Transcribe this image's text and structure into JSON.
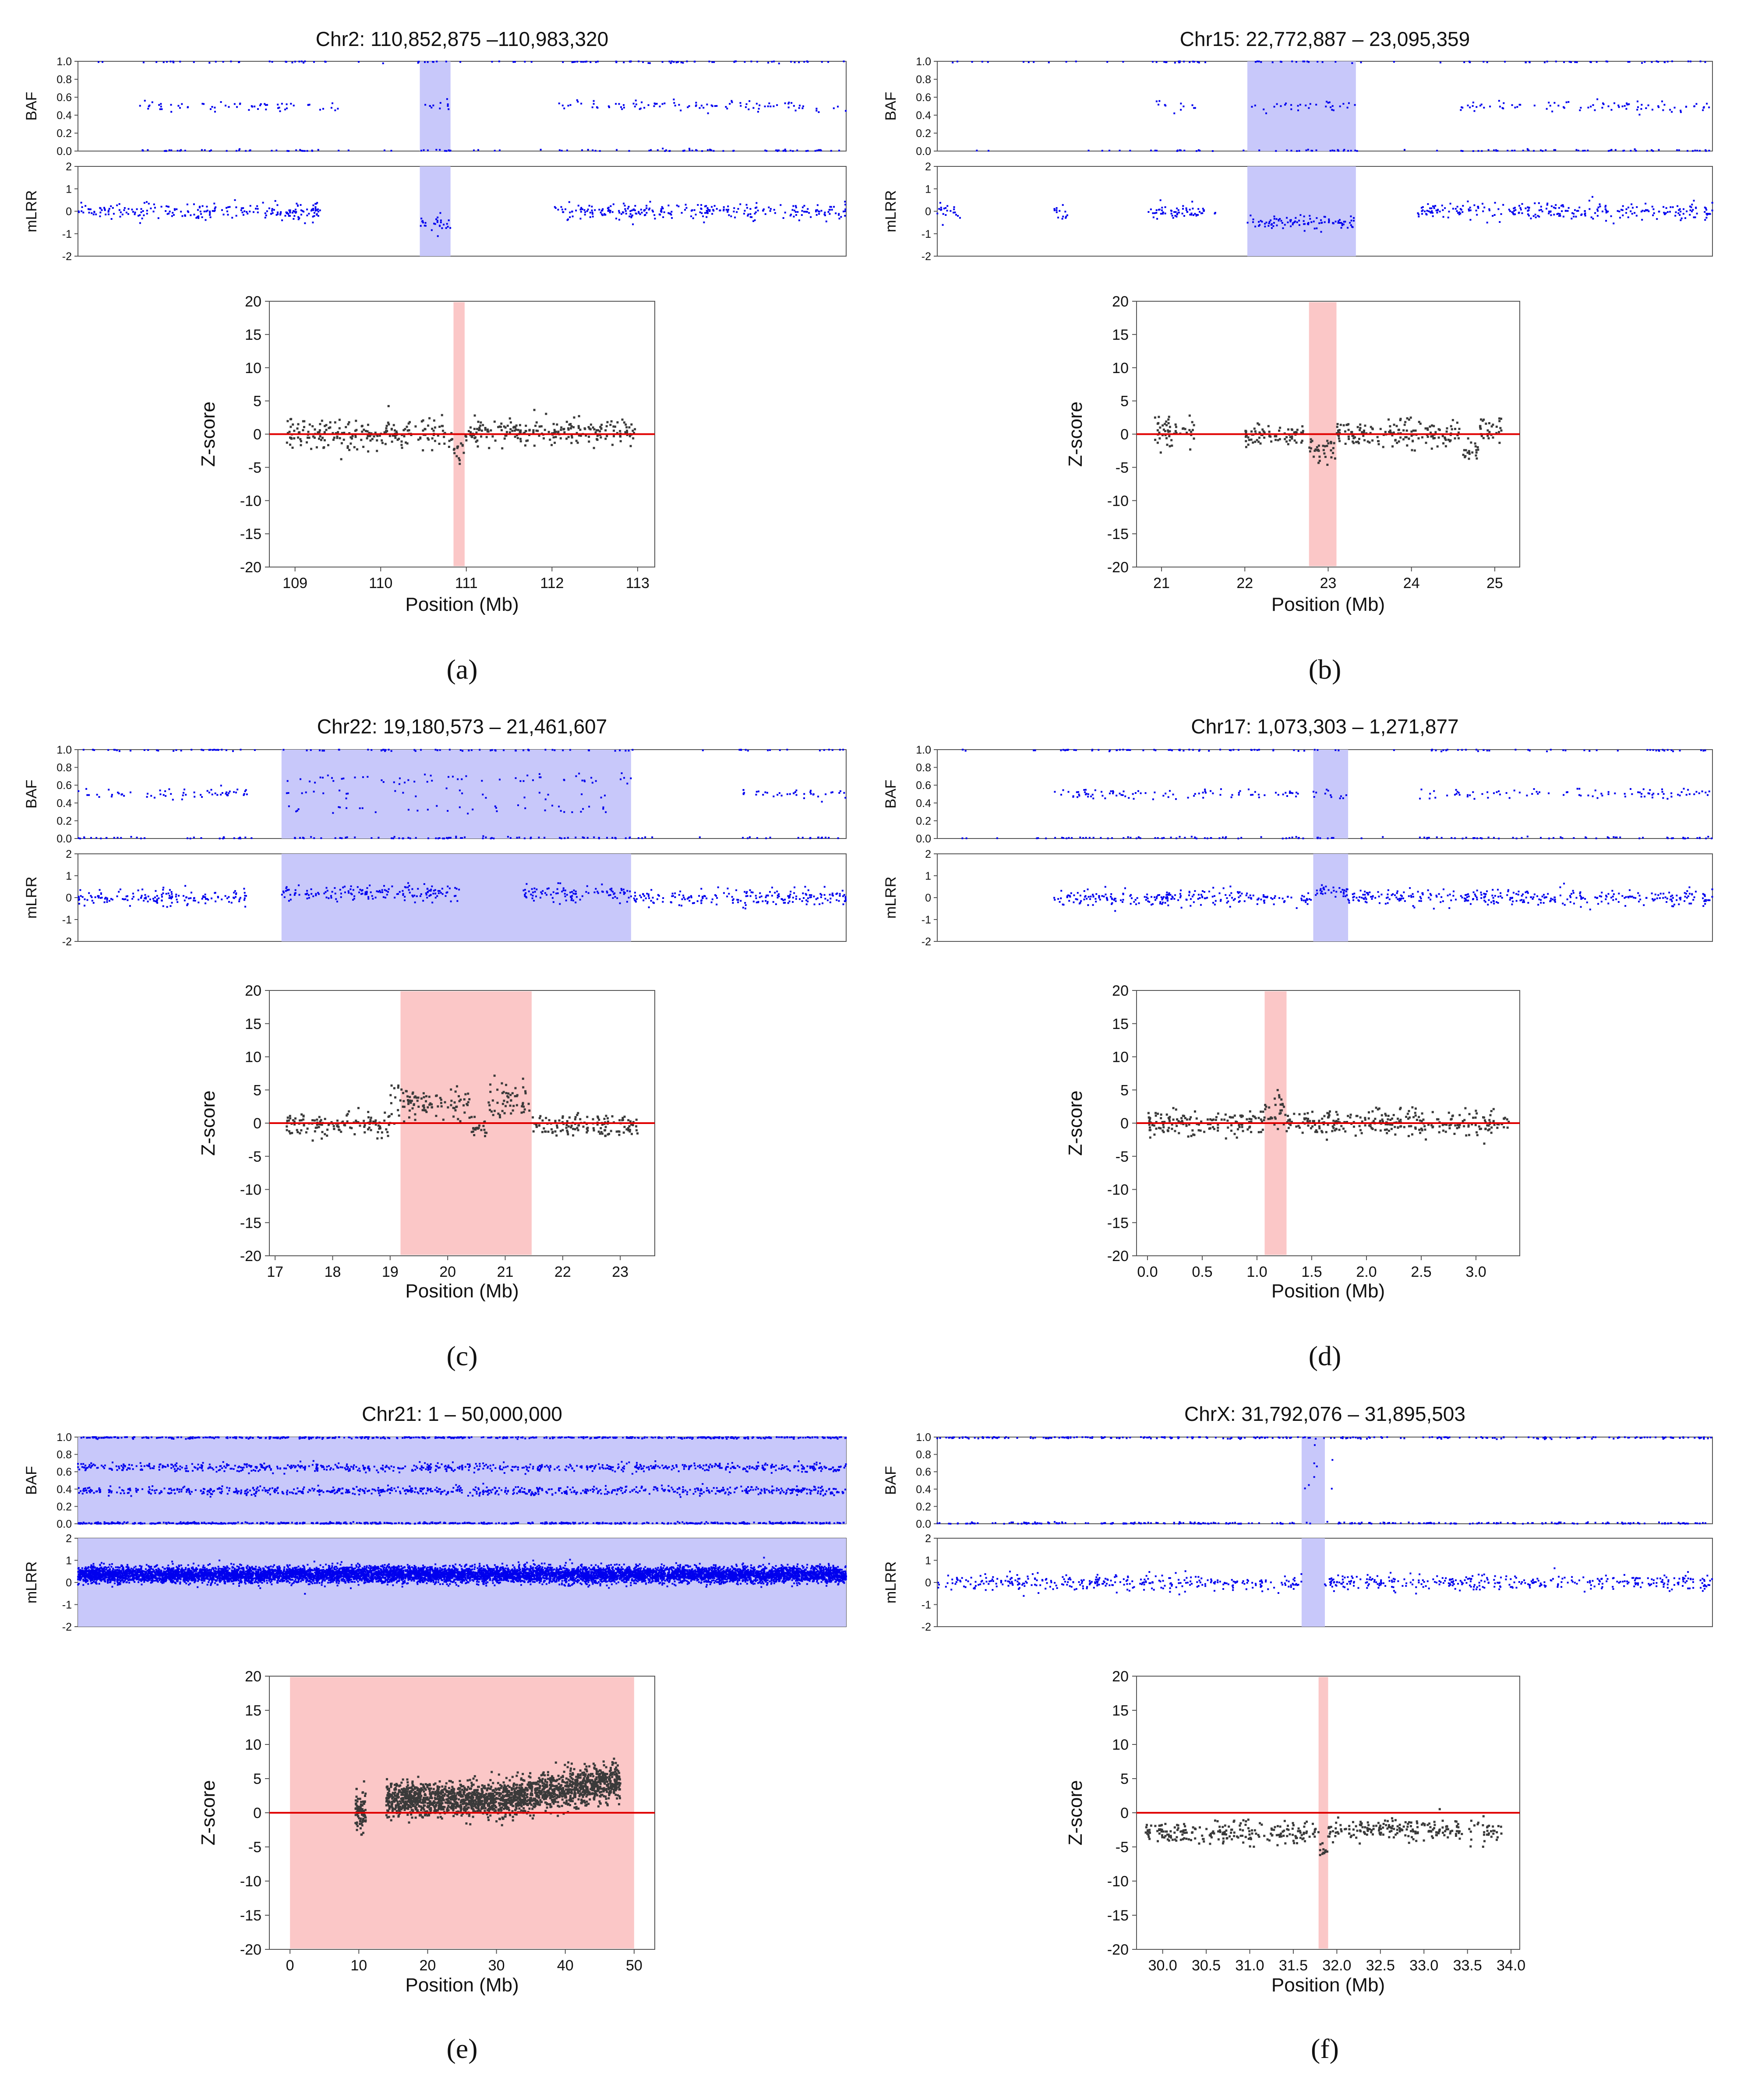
{
  "figure": {
    "colors": {
      "point_blue": "#0000ee",
      "point_dark": "#3a3a3a",
      "shade_blue": "#c8c8fa",
      "shade_red": "#fbc7c7",
      "zero_line": "#e00000",
      "axis": "#555555"
    },
    "common": {
      "baf_label": "BAF",
      "mlrr_label": "mLRR",
      "z_label": "Z-score",
      "x_label": "Position (Mb)",
      "baf_ticks": [
        "0.0",
        "0.2",
        "0.4",
        "0.6",
        "0.8",
        "1.0"
      ],
      "mlrr_ticks": [
        "-2",
        "-1",
        "0",
        "1",
        "2"
      ],
      "z_ticks": [
        "-20",
        "-15",
        "-10",
        "-5",
        "0",
        "5",
        "10",
        "15",
        "20"
      ]
    }
  },
  "chart_data": [
    {
      "type": "scatter",
      "panel": "(a)",
      "letter": "a",
      "title": "Chr2: 110,852,875 –110,983,320",
      "baf": {
        "ylim": [
          0,
          1
        ],
        "shaded": [
          0.445,
          0.485
        ],
        "levels": [
          0,
          0.5,
          1
        ],
        "x_gaps": [
          [
            0.0,
            0.08
          ],
          [
            0.35,
            0.445
          ],
          [
            0.485,
            0.62
          ]
        ],
        "hetero_frac": 0.1
      },
      "mlrr": {
        "ylim": [
          -2,
          2
        ],
        "baseline": 0,
        "segments": [
          [
            0.0,
            0.32
          ],
          [
            0.445,
            0.485,
            -0.5
          ],
          [
            0.62,
            1.0
          ]
        ]
      },
      "zscore": {
        "xlim": [
          108.7,
          113.2
        ],
        "xticks": [
          109,
          110,
          111,
          112,
          113
        ],
        "ylim": [
          -20,
          20
        ],
        "shaded": [
          110.85,
          110.98
        ],
        "zero_line": 0,
        "segments": [
          [
            108.9,
            110.85,
            0,
            1.2
          ],
          [
            110.85,
            110.98,
            -2.5,
            0.9
          ],
          [
            110.98,
            113.0,
            0.3,
            1.0
          ]
        ]
      }
    },
    {
      "type": "scatter",
      "panel": "(b)",
      "letter": "b",
      "title": "Chr15: 22,772,887 – 23,095,359",
      "baf": {
        "ylim": [
          0,
          1
        ],
        "shaded": [
          0.4,
          0.54
        ],
        "levels": [
          0,
          0.5,
          1
        ],
        "x_gaps": [
          [
            0.0,
            0.28
          ],
          [
            0.34,
            0.4
          ],
          [
            0.54,
            0.67
          ]
        ],
        "hetero_frac": 0.1
      },
      "mlrr": {
        "ylim": [
          -2,
          2
        ],
        "baseline": 0,
        "segments": [
          [
            0.0,
            0.03
          ],
          [
            0.15,
            0.17
          ],
          [
            0.27,
            0.36
          ],
          [
            0.4,
            0.54,
            -0.5
          ],
          [
            0.62,
            1.0
          ]
        ]
      },
      "zscore": {
        "xlim": [
          20.7,
          25.3
        ],
        "xticks": [
          21,
          22,
          23,
          24,
          25
        ],
        "ylim": [
          -20,
          20
        ],
        "shaded": [
          22.77,
          23.1
        ],
        "zero_line": 0,
        "segments": [
          [
            20.9,
            21.4,
            0.5,
            1.3
          ],
          [
            22.0,
            22.7,
            -0.2,
            0.8
          ],
          [
            22.77,
            23.1,
            -2.3,
            1.0
          ],
          [
            23.1,
            24.6,
            0,
            1.0
          ],
          [
            24.6,
            24.8,
            -2.5,
            0.8
          ],
          [
            24.8,
            25.1,
            0.5,
            1.0
          ]
        ]
      }
    },
    {
      "type": "scatter",
      "panel": "(c)",
      "letter": "c",
      "title": "Chr22: 19,180,573 – 21,461,607",
      "baf": {
        "ylim": [
          0,
          1
        ],
        "shaded": [
          0.265,
          0.72
        ],
        "levels": [
          0,
          0.5,
          1
        ],
        "alt_levels": [
          0.33,
          0.67
        ],
        "alt_range": [
          0.265,
          0.72
        ],
        "x_gaps": [
          [
            0.22,
            0.265
          ],
          [
            0.72,
            0.86
          ]
        ],
        "hetero_frac": 0.1
      },
      "mlrr": {
        "ylim": [
          -2,
          2
        ],
        "baseline": 0,
        "segments": [
          [
            0.0,
            0.22
          ],
          [
            0.265,
            0.5,
            0.2
          ],
          [
            0.58,
            0.72,
            0.2
          ],
          [
            0.72,
            1.0
          ]
        ]
      },
      "zscore": {
        "xlim": [
          16.9,
          23.6
        ],
        "xticks": [
          17,
          18,
          19,
          20,
          21,
          22,
          23
        ],
        "ylim": [
          -20,
          20
        ],
        "shaded": [
          19.18,
          21.46
        ],
        "zero_line": 0,
        "segments": [
          [
            17.2,
            19.0,
            -0.2,
            1.0
          ],
          [
            19.0,
            20.4,
            3,
            1.2
          ],
          [
            20.4,
            20.7,
            -0.5,
            0.8
          ],
          [
            20.7,
            21.46,
            3.5,
            1.3
          ],
          [
            21.46,
            23.3,
            -0.5,
            0.9
          ]
        ]
      }
    },
    {
      "type": "scatter",
      "panel": "(d)",
      "letter": "d",
      "title": "Chr17: 1,073,303 – 1,271,877",
      "baf": {
        "ylim": [
          0,
          1
        ],
        "shaded": [
          0.485,
          0.53
        ],
        "levels": [
          0,
          0.5,
          1
        ],
        "x_gaps": [
          [
            0.0,
            0.15
          ],
          [
            0.53,
            0.62
          ]
        ],
        "hetero_frac": 0.1
      },
      "mlrr": {
        "ylim": [
          -2,
          2
        ],
        "baseline": 0,
        "segments": [
          [
            0.15,
            0.485
          ],
          [
            0.485,
            0.53,
            0.3
          ],
          [
            0.53,
            1.0
          ]
        ]
      },
      "zscore": {
        "xlim": [
          -0.1,
          3.4
        ],
        "xticks": [
          0.0,
          0.5,
          1.0,
          1.5,
          2.0,
          2.5,
          3.0
        ],
        "ylim": [
          -20,
          20
        ],
        "shaded": [
          1.07,
          1.27
        ],
        "zero_line": 0,
        "xtick_labels": [
          "0.0",
          "0.5",
          "1.0",
          "1.5",
          "2.0",
          "2.5",
          "3.0"
        ],
        "segments": [
          [
            0.0,
            1.07,
            0,
            1.0
          ],
          [
            1.07,
            1.27,
            2,
            1.2
          ],
          [
            1.27,
            3.3,
            0,
            1.0
          ]
        ]
      }
    },
    {
      "type": "scatter",
      "panel": "(e)",
      "letter": "e",
      "title": "Chr21: 1 – 50,000,000",
      "baf": {
        "ylim": [
          0,
          1
        ],
        "shaded": [
          0.0,
          1.0
        ],
        "levels": [
          0,
          1
        ],
        "alt_levels": [
          0.38,
          0.65
        ],
        "alt_range": [
          0.0,
          1.0
        ],
        "hetero_frac": 0.22,
        "dense": true
      },
      "mlrr": {
        "ylim": [
          -2,
          2
        ],
        "baseline": 0.35,
        "segments": [
          [
            0.0,
            1.0,
            0.35
          ]
        ],
        "dense": true
      },
      "zscore": {
        "xlim": [
          -3,
          53
        ],
        "xticks": [
          0,
          10,
          20,
          30,
          40,
          50
        ],
        "ylim": [
          -20,
          20
        ],
        "shaded": [
          0,
          50
        ],
        "zero_line": 0,
        "segments": [
          [
            9.5,
            11,
            0,
            1.2
          ],
          [
            14,
            30,
            2,
            1.2
          ],
          [
            30,
            48,
            "ramp",
            1.3
          ]
        ]
      }
    },
    {
      "type": "scatter",
      "panel": "(f)",
      "letter": "f",
      "title": "ChrX: 31,792,076 – 31,895,503",
      "baf": {
        "ylim": [
          0,
          1
        ],
        "shaded": [
          0.47,
          0.5
        ],
        "levels": [
          0,
          1
        ],
        "x_gaps": [],
        "hetero_frac": 0.0,
        "spread": [
          0.47,
          0.5
        ]
      },
      "mlrr": {
        "ylim": [
          -2,
          2
        ],
        "baseline": 0,
        "segments": [
          [
            0.0,
            0.47
          ],
          [
            0.5,
            1.0
          ]
        ]
      },
      "zscore": {
        "xlim": [
          29.7,
          34.1
        ],
        "xticks": [
          30.0,
          30.5,
          31.0,
          31.5,
          32.0,
          32.5,
          33.0,
          33.5,
          34.0
        ],
        "ylim": [
          -20,
          20
        ],
        "shaded": [
          31.79,
          31.9
        ],
        "zero_line": 0,
        "xtick_labels": [
          "30.0",
          "30.5",
          "31.0",
          "31.5",
          "32.0",
          "32.5",
          "33.0",
          "33.5",
          "34.0"
        ],
        "segments": [
          [
            29.8,
            31.79,
            -3,
            0.8
          ],
          [
            31.79,
            31.9,
            -5.5,
            0.5
          ],
          [
            31.9,
            33.9,
            -2.5,
            0.8
          ]
        ]
      }
    }
  ]
}
